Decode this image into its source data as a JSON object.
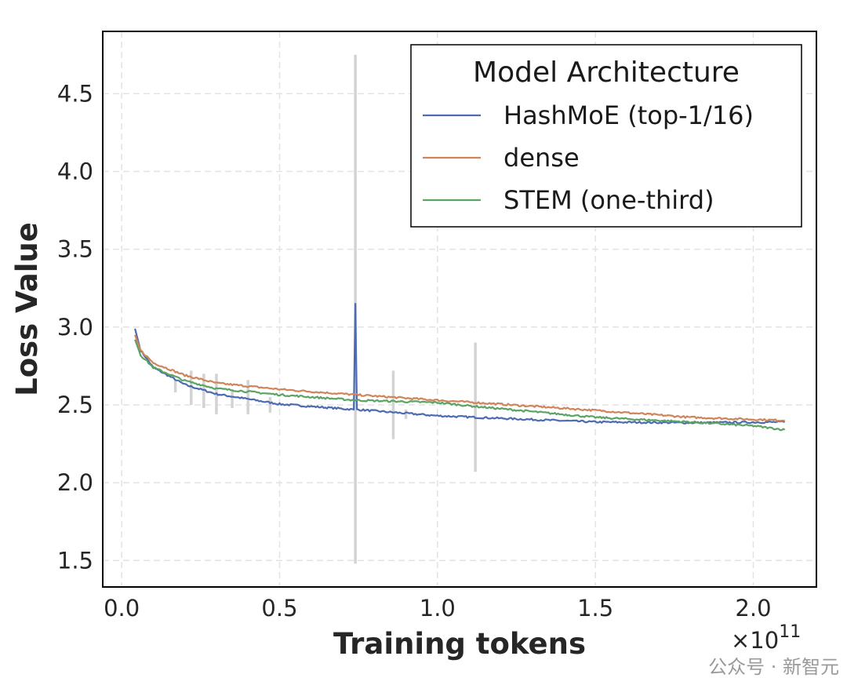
{
  "chart_data": {
    "type": "line",
    "title": "",
    "xlabel": "Training tokens",
    "x_offset_label": "×10^11",
    "x_offset_base": "×10",
    "x_offset_exp": "11",
    "ylabel": "Loss Value",
    "xlim": [
      -0.06,
      2.2
    ],
    "ylim": [
      1.33,
      4.9
    ],
    "x_ticks": [
      0.0,
      0.5,
      1.0,
      1.5,
      2.0
    ],
    "x_tick_labels": [
      "0.0",
      "0.5",
      "1.0",
      "1.5",
      "2.0"
    ],
    "y_ticks": [
      1.5,
      2.0,
      2.5,
      3.0,
      3.5,
      4.0,
      4.5
    ],
    "y_tick_labels": [
      "1.5",
      "2.0",
      "2.5",
      "3.0",
      "3.5",
      "4.0",
      "4.5"
    ],
    "grid": true,
    "legend": {
      "title": "Model Architecture",
      "placement": "top-right"
    },
    "series": [
      {
        "name": "HashMoE (top-1/16)",
        "color": "#4c6bb0",
        "x": [
          0.042,
          0.06,
          0.1,
          0.2,
          0.3,
          0.5,
          0.735,
          0.74,
          0.745,
          1.0,
          1.12,
          1.5,
          1.8,
          2.1
        ],
        "y": [
          2.99,
          2.85,
          2.74,
          2.63,
          2.57,
          2.505,
          2.47,
          3.15,
          2.47,
          2.43,
          2.42,
          2.39,
          2.385,
          2.39
        ]
      },
      {
        "name": "dense",
        "color": "#d0845a",
        "x": [
          0.042,
          0.06,
          0.1,
          0.2,
          0.3,
          0.5,
          0.74,
          1.0,
          1.12,
          1.5,
          1.8,
          2.1
        ],
        "y": [
          2.95,
          2.85,
          2.77,
          2.69,
          2.64,
          2.6,
          2.565,
          2.53,
          2.515,
          2.465,
          2.42,
          2.4
        ]
      },
      {
        "name": "STEM (one-third)",
        "color": "#5ba464",
        "x": [
          0.042,
          0.06,
          0.1,
          0.2,
          0.3,
          0.5,
          0.74,
          1.0,
          1.12,
          1.5,
          1.8,
          2.0,
          2.1
        ],
        "y": [
          2.92,
          2.82,
          2.74,
          2.655,
          2.605,
          2.565,
          2.53,
          2.515,
          2.49,
          2.42,
          2.39,
          2.365,
          2.34
        ]
      }
    ],
    "spike_bands": {
      "color": "#d3d3d3",
      "x": [
        0.17,
        0.22,
        0.26,
        0.3,
        0.35,
        0.4,
        0.47,
        0.74,
        0.86,
        0.9,
        1.12
      ],
      "low": [
        2.58,
        2.5,
        2.48,
        2.44,
        2.48,
        2.44,
        2.45,
        1.48,
        2.28,
        2.41,
        2.07
      ],
      "high": [
        2.66,
        2.72,
        2.7,
        2.7,
        2.6,
        2.66,
        2.55,
        4.75,
        2.72,
        2.47,
        2.9
      ]
    }
  },
  "watermark": "公众号 · 新智元"
}
